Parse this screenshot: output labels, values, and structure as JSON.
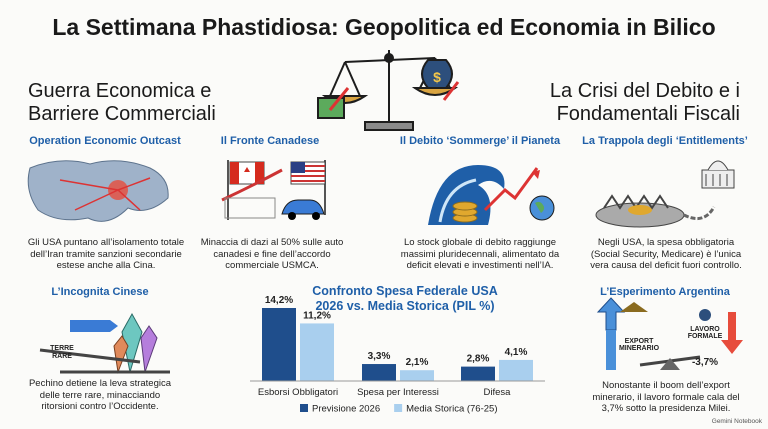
{
  "header": {
    "title": "La Settimana Phastidiosa: Geopolitica ed Economia in Bilico"
  },
  "left_heading": "Guerra Economica e Barriere Commerciali",
  "right_heading": "La Crisi del Debito e i Fondamentali Fiscali",
  "panels": [
    {
      "title": "Operation Economic Outcast",
      "text": "Gli USA puntano all’isolamento totale dell’Iran tramite sanzioni secondarie estese anche alla Cina."
    },
    {
      "title": "Il Fronte Canadese",
      "text": "Minaccia di dazi al 50% sulle auto canadesi e fine dell’accordo commerciale USMCA."
    },
    {
      "title": "Il Debito ‘Sommerge’ il Pianeta",
      "text": "Lo stock globale di debito raggiunge massimi pluridecennali, alimentato da deficit elevati e investimenti nell’IA."
    },
    {
      "title": "La Trappola degli ‘Entitlements’",
      "text": "Negli USA, la spesa obbligatoria (Social Security, Medicare) è l’unica vera causa del deficit fuori controllo."
    },
    {
      "title": "L’Incognita Cinese",
      "text": "Pechino detiene la leva strategica delle terre rare, minacciando ritorsioni contro l’Occidente.",
      "labels": [
        "TERRE",
        "RARE"
      ]
    },
    {
      "title": "L’Esperimento Argentina",
      "text": "Nonostante il boom dell’export minerario, il lavoro formale cala del 3,7% sotto la presidenza Milei.",
      "labels": [
        "EXPORT MINERARIO",
        "LAVORO FORMALE",
        "-3,7%"
      ]
    }
  ],
  "watermark": "Gemini Notebook",
  "chart_data": {
    "type": "bar",
    "title": "Confronto Spesa Federale USA 2026 vs. Media Storica (PIL %)",
    "categories": [
      "Esborsi Obbligatori",
      "Spesa per Interessi",
      "Difesa"
    ],
    "series": [
      {
        "name": "Previsione 2026",
        "color": "#1f4e8c",
        "values": [
          14.2,
          3.3,
          2.8
        ],
        "value_labels": [
          "14,2%",
          "3,3%",
          "2,8%"
        ]
      },
      {
        "name": "Media Storica (76-25)",
        "color": "#a9cfee",
        "values": [
          11.2,
          2.1,
          4.1
        ],
        "value_labels": [
          "11,2%",
          "2,1%",
          "4,1%"
        ]
      }
    ]
  }
}
